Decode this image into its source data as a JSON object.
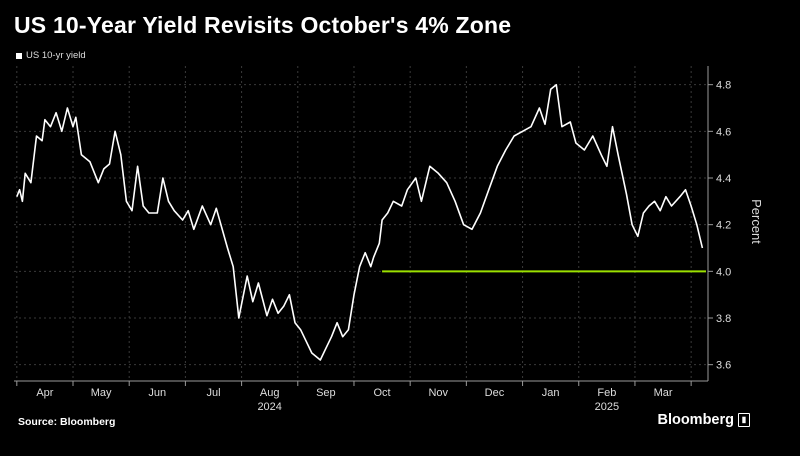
{
  "title": "US 10-Year Yield Revisits October's 4% Zone",
  "legend_label": "US 10-yr yield",
  "source": "Source: Bloomberg",
  "brand": "Bloomberg",
  "colors": {
    "line": "#ffffff",
    "reference": "#9be000",
    "grid": "#3a3a3a",
    "axis": "#9a9a9a"
  },
  "chart_data": {
    "type": "line",
    "ylabel": "Percent",
    "ylim": [
      3.53,
      4.88
    ],
    "yticks": [
      3.6,
      3.8,
      4.0,
      4.2,
      4.4,
      4.6,
      4.8
    ],
    "ytick_labels": [
      "3.6",
      "3.8",
      "4.0",
      "4.2",
      "4.4",
      "4.6",
      "4.8"
    ],
    "months": [
      {
        "label": "Apr",
        "t": 0.5
      },
      {
        "label": "May",
        "t": 1.5
      },
      {
        "label": "Jun",
        "t": 2.5
      },
      {
        "label": "Jul",
        "t": 3.5
      },
      {
        "label": "Aug",
        "t": 4.5
      },
      {
        "label": "Sep",
        "t": 5.5
      },
      {
        "label": "Oct",
        "t": 6.5
      },
      {
        "label": "Nov",
        "t": 7.5
      },
      {
        "label": "Dec",
        "t": 8.5
      },
      {
        "label": "Jan",
        "t": 9.5
      },
      {
        "label": "Feb",
        "t": 10.5
      },
      {
        "label": "Mar",
        "t": 11.5
      }
    ],
    "year_labels": [
      {
        "label": "2024",
        "t": 4.5
      },
      {
        "label": "2025",
        "t": 10.5
      }
    ],
    "xlim": [
      -0.05,
      12.3
    ],
    "x": [
      0.0,
      0.05,
      0.1,
      0.15,
      0.25,
      0.35,
      0.45,
      0.5,
      0.6,
      0.7,
      0.8,
      0.9,
      1.0,
      1.05,
      1.15,
      1.3,
      1.45,
      1.55,
      1.65,
      1.75,
      1.85,
      1.95,
      2.05,
      2.15,
      2.25,
      2.35,
      2.5,
      2.6,
      2.7,
      2.8,
      2.95,
      3.05,
      3.15,
      3.3,
      3.45,
      3.55,
      3.75,
      3.85,
      3.95,
      4.1,
      4.2,
      4.3,
      4.45,
      4.55,
      4.65,
      4.75,
      4.85,
      4.95,
      5.05,
      5.15,
      5.25,
      5.4,
      5.5,
      5.6,
      5.7,
      5.8,
      5.9,
      6.0,
      6.1,
      6.2,
      6.3,
      6.35,
      6.45,
      6.5,
      6.6,
      6.7,
      6.85,
      6.95,
      7.1,
      7.2,
      7.35,
      7.5,
      7.65,
      7.8,
      7.95,
      8.1,
      8.25,
      8.4,
      8.55,
      8.7,
      8.85,
      9.0,
      9.15,
      9.3,
      9.4,
      9.5,
      9.6,
      9.7,
      9.85,
      9.95,
      10.1,
      10.25,
      10.4,
      10.5,
      10.6,
      10.7,
      10.85,
      10.95,
      11.05,
      11.15,
      11.25,
      11.35,
      11.45,
      11.55,
      11.65,
      11.8,
      11.9,
      12.0,
      12.1,
      12.2
    ],
    "y": [
      4.32,
      4.35,
      4.3,
      4.42,
      4.38,
      4.58,
      4.56,
      4.65,
      4.62,
      4.68,
      4.6,
      4.7,
      4.62,
      4.66,
      4.5,
      4.47,
      4.38,
      4.44,
      4.46,
      4.6,
      4.5,
      4.3,
      4.26,
      4.45,
      4.28,
      4.25,
      4.25,
      4.4,
      4.3,
      4.26,
      4.22,
      4.26,
      4.18,
      4.28,
      4.2,
      4.27,
      4.1,
      4.02,
      3.8,
      3.98,
      3.87,
      3.95,
      3.81,
      3.88,
      3.82,
      3.85,
      3.9,
      3.78,
      3.75,
      3.7,
      3.65,
      3.62,
      3.67,
      3.72,
      3.78,
      3.72,
      3.75,
      3.9,
      4.02,
      4.08,
      4.02,
      4.06,
      4.12,
      4.22,
      4.25,
      4.3,
      4.28,
      4.35,
      4.4,
      4.3,
      4.45,
      4.42,
      4.38,
      4.3,
      4.2,
      4.18,
      4.25,
      4.35,
      4.45,
      4.52,
      4.58,
      4.6,
      4.62,
      4.7,
      4.63,
      4.78,
      4.8,
      4.62,
      4.64,
      4.55,
      4.52,
      4.58,
      4.5,
      4.45,
      4.62,
      4.5,
      4.33,
      4.2,
      4.15,
      4.25,
      4.28,
      4.3,
      4.26,
      4.32,
      4.28,
      4.32,
      4.35,
      4.28,
      4.2,
      4.1
    ],
    "reference_line": {
      "y": 4.0,
      "t_start": 6.5,
      "t_end": 12.3
    }
  }
}
